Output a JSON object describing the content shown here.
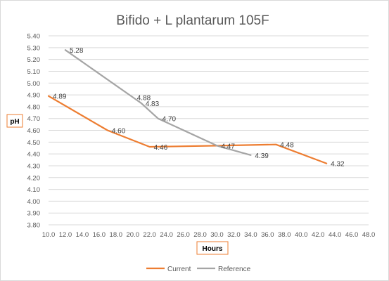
{
  "chart_data": {
    "type": "line",
    "title": "Bifido + L plantarum 105F",
    "xlabel": "Hours",
    "ylabel": "pH",
    "xlim": [
      10.0,
      48.0
    ],
    "xstep": 2.0,
    "ylim": [
      3.8,
      5.4
    ],
    "ystep": 0.1,
    "grid": true,
    "legend_position": "bottom",
    "series": [
      {
        "name": "Current",
        "color": "#ed7d31",
        "x": [
          10.0,
          17.0,
          22.0,
          30.0,
          37.0,
          43.0
        ],
        "y": [
          4.89,
          4.6,
          4.46,
          4.47,
          4.48,
          4.32
        ],
        "labels": [
          "4.89",
          "4.60",
          "4.46",
          "4.47",
          "4.48",
          "4.32"
        ]
      },
      {
        "name": "Reference",
        "color": "#a5a5a5",
        "x": [
          12.0,
          20.0,
          21.0,
          23.0,
          30.0,
          34.0
        ],
        "y": [
          5.28,
          4.88,
          4.83,
          4.7,
          4.47,
          4.39
        ],
        "labels": [
          "5.28",
          "4.88",
          "4.83",
          "4.70",
          "",
          "4.39"
        ]
      }
    ]
  }
}
